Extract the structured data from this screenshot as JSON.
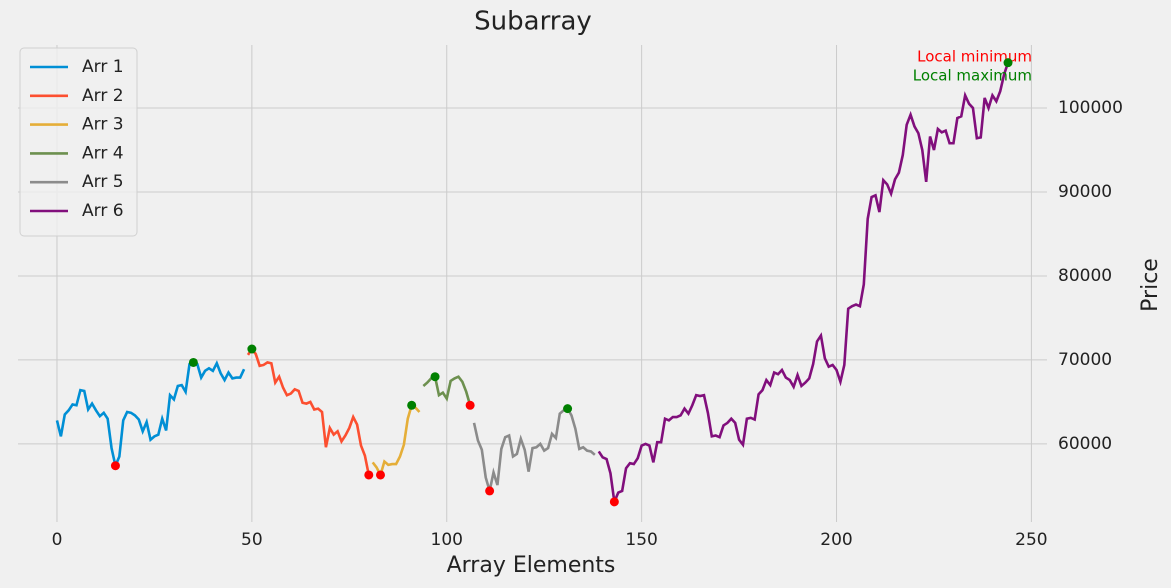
{
  "chart_data": {
    "type": "line",
    "title": "Subarray",
    "xlabel": "Array Elements",
    "ylabel": "Price",
    "xlim": [
      -10,
      254
    ],
    "ylim": [
      50700,
      107500
    ],
    "xticks": [
      0,
      50,
      100,
      150,
      200,
      250
    ],
    "yticks": [
      60000,
      70000,
      80000,
      90000,
      100000
    ],
    "grid": true,
    "legend": "upper left",
    "y_axis_side": "right",
    "series": [
      {
        "name": "Arr 1",
        "color": "#008fd5",
        "x": [
          0,
          1,
          2,
          3,
          4,
          5,
          6,
          7,
          8,
          9,
          10,
          11,
          12,
          13,
          14,
          15,
          16,
          17,
          18,
          19,
          20,
          21,
          22,
          23,
          24,
          25,
          26,
          27,
          28,
          29,
          30,
          31,
          32,
          33,
          34,
          35,
          36,
          37,
          38,
          39,
          40,
          41,
          42,
          43,
          44,
          45,
          46,
          47,
          48
        ],
        "values": [
          62800,
          60900,
          63500,
          64000,
          64700,
          64600,
          66400,
          66300,
          64100,
          64800,
          64000,
          63300,
          63700,
          63000,
          59500,
          57400,
          58500,
          62800,
          63800,
          63700,
          63400,
          62900,
          61500,
          62600,
          60500,
          60900,
          61100,
          63000,
          61600,
          65800,
          65300,
          66900,
          67000,
          66200,
          69500,
          69700,
          69500,
          67900,
          68700,
          69000,
          68700,
          69600,
          68400,
          67600,
          68500,
          67800,
          67900,
          67900,
          68900
        ]
      },
      {
        "name": "Arr 2",
        "color": "#fc4f30",
        "x": [
          49,
          50,
          51,
          52,
          53,
          54,
          55,
          56,
          57,
          58,
          59,
          60,
          61,
          62,
          63,
          64,
          65,
          66,
          67,
          68,
          69,
          70,
          71,
          72,
          73,
          74,
          75,
          76,
          77,
          78,
          79,
          80
        ],
        "values": [
          70600,
          71300,
          70700,
          69300,
          69400,
          69700,
          69600,
          67300,
          68000,
          66700,
          65800,
          66000,
          66500,
          66300,
          64900,
          64800,
          65000,
          64100,
          64200,
          63800,
          59600,
          61900,
          61100,
          61500,
          60300,
          61000,
          61900,
          63200,
          62300,
          59800,
          58600,
          56300
        ]
      },
      {
        "name": "Arr 3",
        "color": "#e5ae38",
        "x": [
          81,
          82,
          83,
          84,
          85,
          86,
          87,
          88,
          89,
          90,
          91,
          92,
          93
        ],
        "values": [
          57800,
          57200,
          56300,
          57900,
          57500,
          57600,
          57600,
          58500,
          59900,
          63000,
          64600,
          64300,
          63800
        ]
      },
      {
        "name": "Arr 4",
        "color": "#6d904f",
        "x": [
          94,
          95,
          96,
          97,
          98,
          99,
          100,
          101,
          102,
          103,
          104,
          105,
          106
        ],
        "values": [
          66900,
          67300,
          67800,
          68000,
          65800,
          66100,
          65400,
          67500,
          67800,
          68000,
          67400,
          66200,
          64600
        ]
      },
      {
        "name": "Arr 5",
        "color": "#8b8b8b",
        "x": [
          107,
          108,
          109,
          110,
          111,
          112,
          113,
          114,
          115,
          116,
          117,
          118,
          119,
          120,
          121,
          122,
          123,
          124,
          125,
          126,
          127,
          128,
          129,
          130,
          131,
          132,
          133,
          134,
          135,
          136,
          137,
          138
        ],
        "values": [
          62500,
          60400,
          59300,
          56000,
          54400,
          56600,
          55100,
          59400,
          60800,
          61000,
          58500,
          58800,
          60600,
          59300,
          56700,
          59500,
          59600,
          60000,
          59200,
          59500,
          61200,
          60700,
          63600,
          64000,
          64200,
          63400,
          61800,
          59400,
          59600,
          59200,
          59100,
          58700
        ]
      },
      {
        "name": "Arr 6",
        "color": "#810f7c",
        "x": [
          139,
          140,
          141,
          142,
          143,
          144,
          145,
          146,
          147,
          148,
          149,
          150,
          151,
          152,
          153,
          154,
          155,
          156,
          157,
          158,
          159,
          160,
          161,
          162,
          163,
          164,
          165,
          166,
          167,
          168,
          169,
          170,
          171,
          172,
          173,
          174,
          175,
          176,
          177,
          178,
          179,
          180,
          181,
          182,
          183,
          184,
          185,
          186,
          187,
          188,
          189,
          190,
          191,
          192,
          193,
          194,
          195,
          196,
          197,
          198,
          199,
          200,
          201,
          202,
          203,
          204,
          205,
          206,
          207,
          208,
          209,
          210,
          211,
          212,
          213,
          214,
          215,
          216,
          217,
          218,
          219,
          220,
          221,
          222,
          223,
          224,
          225,
          226,
          227,
          228,
          229,
          230,
          231,
          232,
          233,
          234,
          235,
          236,
          237,
          238,
          239,
          240,
          241,
          242,
          243,
          244
        ],
        "values": [
          59100,
          58400,
          58200,
          56500,
          53100,
          54200,
          54400,
          57100,
          57700,
          57600,
          58300,
          59800,
          60000,
          59800,
          57800,
          60200,
          60200,
          63000,
          62800,
          63200,
          63200,
          63400,
          64200,
          63600,
          64600,
          65800,
          65700,
          65800,
          63700,
          60900,
          61000,
          60800,
          62200,
          62500,
          63000,
          62500,
          60500,
          59900,
          63000,
          63100,
          62900,
          65900,
          66400,
          67600,
          67000,
          68500,
          68300,
          68800,
          67900,
          67600,
          66800,
          68200,
          66900,
          67300,
          67800,
          69500,
          72200,
          72900,
          70200,
          69200,
          69400,
          68800,
          67400,
          69400,
          76100,
          76400,
          76600,
          76400,
          79000,
          86800,
          89400,
          89600,
          87600,
          91400,
          90900,
          89800,
          91500,
          92300,
          94400,
          98000,
          99200,
          97800,
          97000,
          95000,
          91200,
          96600,
          95000,
          97500,
          97100,
          97300,
          95800,
          95800,
          98800,
          99000,
          101500,
          100500,
          100000,
          96400,
          96500,
          101200,
          100000,
          101500,
          100800,
          102000,
          104000,
          105400
        ]
      }
    ],
    "markers": [
      {
        "name": "Local minimum",
        "color": "red",
        "x": [
          15,
          80,
          83,
          106,
          111,
          143
        ],
        "values": [
          57400,
          56300,
          56300,
          64600,
          54400,
          53100
        ]
      },
      {
        "name": "Local maximum",
        "color": "green",
        "x": [
          35,
          50,
          91,
          97,
          131,
          244
        ],
        "values": [
          69700,
          71300,
          64600,
          68000,
          64200,
          105400
        ]
      }
    ]
  }
}
